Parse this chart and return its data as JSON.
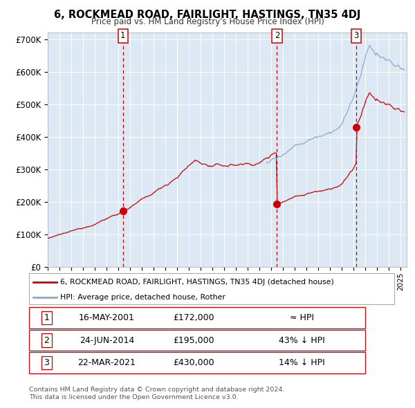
{
  "title": "6, ROCKMEAD ROAD, FAIRLIGHT, HASTINGS, TN35 4DJ",
  "subtitle": "Price paid vs. HM Land Registry's House Price Index (HPI)",
  "plot_bg_color": "#dce9f5",
  "red_line_color": "#cc0000",
  "blue_line_color": "#88aacc",
  "sale_marker_color": "#cc0000",
  "vline_color": "#cc0000",
  "ylim": [
    0,
    700000
  ],
  "yticks": [
    0,
    100000,
    200000,
    300000,
    400000,
    500000,
    600000,
    700000
  ],
  "ytick_labels": [
    "£0",
    "£100K",
    "£200K",
    "£300K",
    "£400K",
    "£500K",
    "£600K",
    "£700K"
  ],
  "sale1_date": 2001.38,
  "sale1_price": 172000,
  "sale2_date": 2014.48,
  "sale2_price": 195000,
  "sale3_date": 2021.22,
  "sale3_price": 430000,
  "legend_red": "6, ROCKMEAD ROAD, FAIRLIGHT, HASTINGS, TN35 4DJ (detached house)",
  "legend_blue": "HPI: Average price, detached house, Rother",
  "table_data": [
    [
      "1",
      "16-MAY-2001",
      "£172,000",
      "≈ HPI"
    ],
    [
      "2",
      "24-JUN-2014",
      "£195,000",
      "43% ↓ HPI"
    ],
    [
      "3",
      "22-MAR-2021",
      "£430,000",
      "14% ↓ HPI"
    ]
  ],
  "footnote1": "Contains HM Land Registry data © Crown copyright and database right 2024.",
  "footnote2": "This data is licensed under the Open Government Licence v3.0.",
  "xstart": 1995,
  "xend": 2025.5
}
